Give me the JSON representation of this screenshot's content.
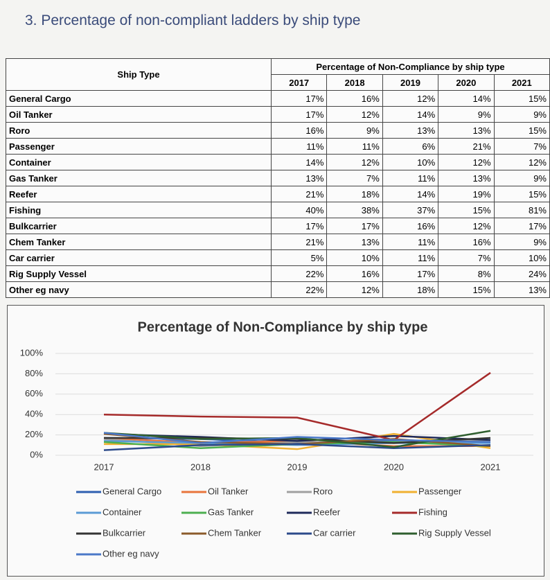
{
  "heading": "3.  Percentage of non-compliant ladders by ship type",
  "table": {
    "title": "Percentage of Non-Compliance by ship type",
    "header": [
      "Ship Type",
      "2017",
      "2018",
      "2019",
      "2020",
      "2021"
    ],
    "rows": [
      [
        "General Cargo",
        "17%",
        "16%",
        "12%",
        "14%",
        "15%"
      ],
      [
        "Oil Tanker",
        "17%",
        "12%",
        "14%",
        "9%",
        "9%"
      ],
      [
        "Roro",
        "16%",
        "9%",
        "13%",
        "13%",
        "15%"
      ],
      [
        "Passenger",
        "11%",
        "11%",
        "6%",
        "21%",
        "7%"
      ],
      [
        "Container",
        "14%",
        "12%",
        "10%",
        "12%",
        "12%"
      ],
      [
        "Gas Tanker",
        "13%",
        "7%",
        "11%",
        "13%",
        "9%"
      ],
      [
        "Reefer",
        "21%",
        "18%",
        "14%",
        "19%",
        "15%"
      ],
      [
        "Fishing",
        "40%",
        "38%",
        "37%",
        "15%",
        "81%"
      ],
      [
        "Bulkcarrier",
        "17%",
        "17%",
        "16%",
        "12%",
        "17%"
      ],
      [
        "Chem Tanker",
        "21%",
        "13%",
        "11%",
        "16%",
        "9%"
      ],
      [
        "Car carrier",
        "5%",
        "10%",
        "11%",
        "7%",
        "10%"
      ],
      [
        "Rig Supply Vessel",
        "22%",
        "16%",
        "17%",
        "8%",
        "24%"
      ],
      [
        "Other eg navy",
        "22%",
        "12%",
        "18%",
        "15%",
        "13%"
      ]
    ]
  },
  "chart_data": {
    "type": "line",
    "title": "Percentage of Non-Compliance by ship type",
    "categories": [
      "2017",
      "2018",
      "2019",
      "2020",
      "2021"
    ],
    "ylim": [
      0,
      100
    ],
    "yticks": [
      {
        "value": 0,
        "label": "0%"
      },
      {
        "value": 20,
        "label": "20%"
      },
      {
        "value": 40,
        "label": "40%"
      },
      {
        "value": 60,
        "label": "60%"
      },
      {
        "value": 80,
        "label": "80%"
      },
      {
        "value": 100,
        "label": "100%"
      }
    ],
    "grid": true,
    "series": [
      {
        "name": "General Cargo",
        "color": "#2e5fb0",
        "values": [
          17,
          16,
          12,
          14,
          15
        ]
      },
      {
        "name": "Oil Tanker",
        "color": "#e8743b",
        "values": [
          17,
          12,
          14,
          9,
          9
        ]
      },
      {
        "name": "Roro",
        "color": "#a0a0a0",
        "values": [
          16,
          9,
          13,
          13,
          15
        ]
      },
      {
        "name": "Passenger",
        "color": "#f0b030",
        "values": [
          11,
          11,
          6,
          21,
          7
        ]
      },
      {
        "name": "Container",
        "color": "#5b9bd5",
        "values": [
          14,
          12,
          10,
          12,
          12
        ]
      },
      {
        "name": "Gas Tanker",
        "color": "#4caf50",
        "values": [
          13,
          7,
          11,
          13,
          9
        ]
      },
      {
        "name": "Reefer",
        "color": "#1f2a5a",
        "values": [
          21,
          18,
          14,
          19,
          15
        ]
      },
      {
        "name": "Fishing",
        "color": "#a52a2a",
        "values": [
          40,
          38,
          37,
          15,
          81
        ]
      },
      {
        "name": "Bulkcarrier",
        "color": "#333333",
        "values": [
          17,
          17,
          16,
          12,
          17
        ]
      },
      {
        "name": "Chem Tanker",
        "color": "#8b5a2b",
        "values": [
          21,
          13,
          11,
          16,
          9
        ]
      },
      {
        "name": "Car carrier",
        "color": "#2c4a8a",
        "values": [
          5,
          10,
          11,
          7,
          10
        ]
      },
      {
        "name": "Rig Supply Vessel",
        "color": "#2e5e2e",
        "values": [
          22,
          16,
          17,
          8,
          24
        ]
      },
      {
        "name": "Other eg navy",
        "color": "#4a78c8",
        "values": [
          22,
          12,
          18,
          15,
          13
        ]
      }
    ]
  }
}
